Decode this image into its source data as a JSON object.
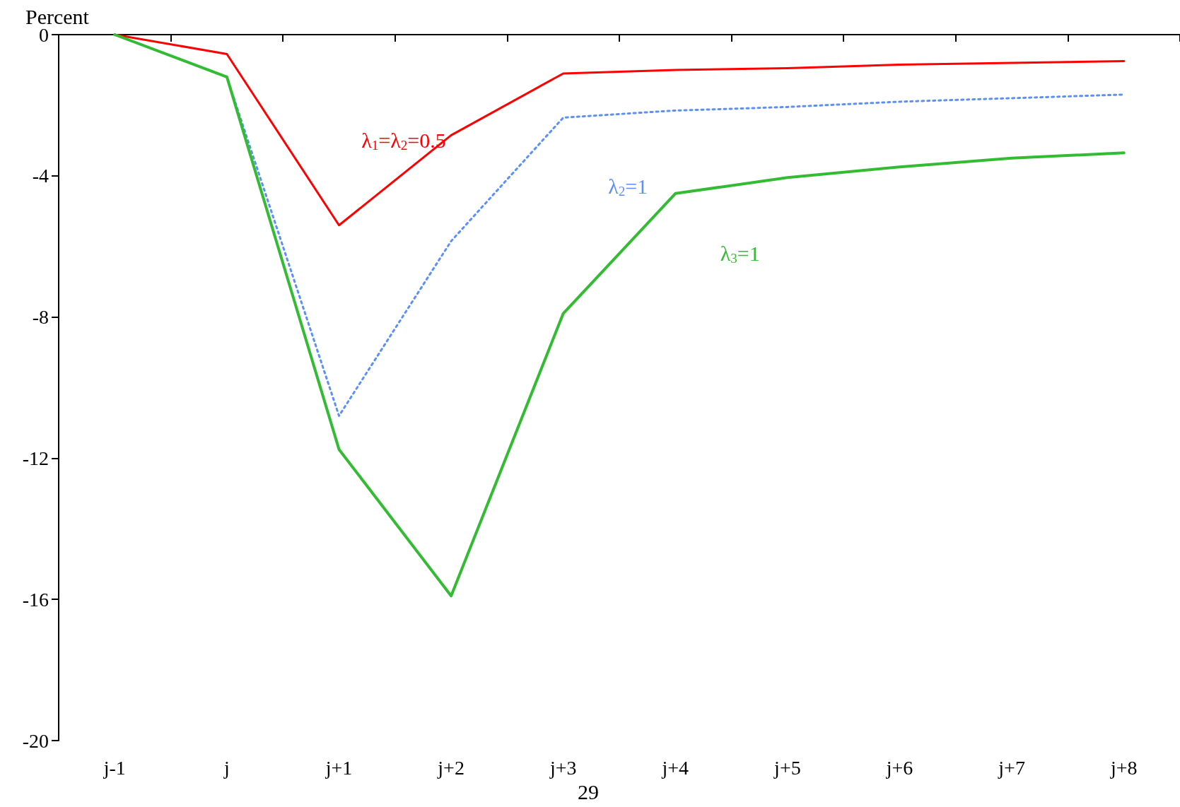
{
  "chart_data": {
    "type": "line",
    "ylabel": "Percent",
    "categories": [
      "j-1",
      "j",
      "j+1",
      "j+2",
      "j+3",
      "j+4",
      "j+5",
      "j+6",
      "j+7",
      "j+8"
    ],
    "series": [
      {
        "name": "λ$_{1}$=λ$_{2}$=0.5",
        "color": "#ff0000",
        "line_style": "solid",
        "values": [
          0,
          -0.55,
          -5.4,
          -2.85,
          -1.1,
          -1.0,
          -0.95,
          -0.85,
          -0.8,
          -0.75
        ]
      },
      {
        "name": "λ$_{2}$=1",
        "color": "#5b8ff9",
        "line_style": "dotted",
        "values": [
          0,
          -1.2,
          -10.8,
          -5.85,
          -2.35,
          -2.15,
          -2.05,
          -1.9,
          -1.8,
          -1.7
        ]
      },
      {
        "name": "λ$_{3}$=1",
        "color": "#33bb33",
        "line_style": "solid",
        "values": [
          0,
          -1.2,
          -11.75,
          -15.9,
          -7.9,
          -4.5,
          -4.05,
          -3.75,
          -3.5,
          -3.35
        ]
      }
    ],
    "ylim": [
      -20,
      0
    ],
    "yticks": [
      -20,
      -16,
      -12,
      -8,
      -4,
      0
    ],
    "grid": false,
    "legend": false,
    "marker": "none",
    "annotations": [
      "29"
    ]
  }
}
